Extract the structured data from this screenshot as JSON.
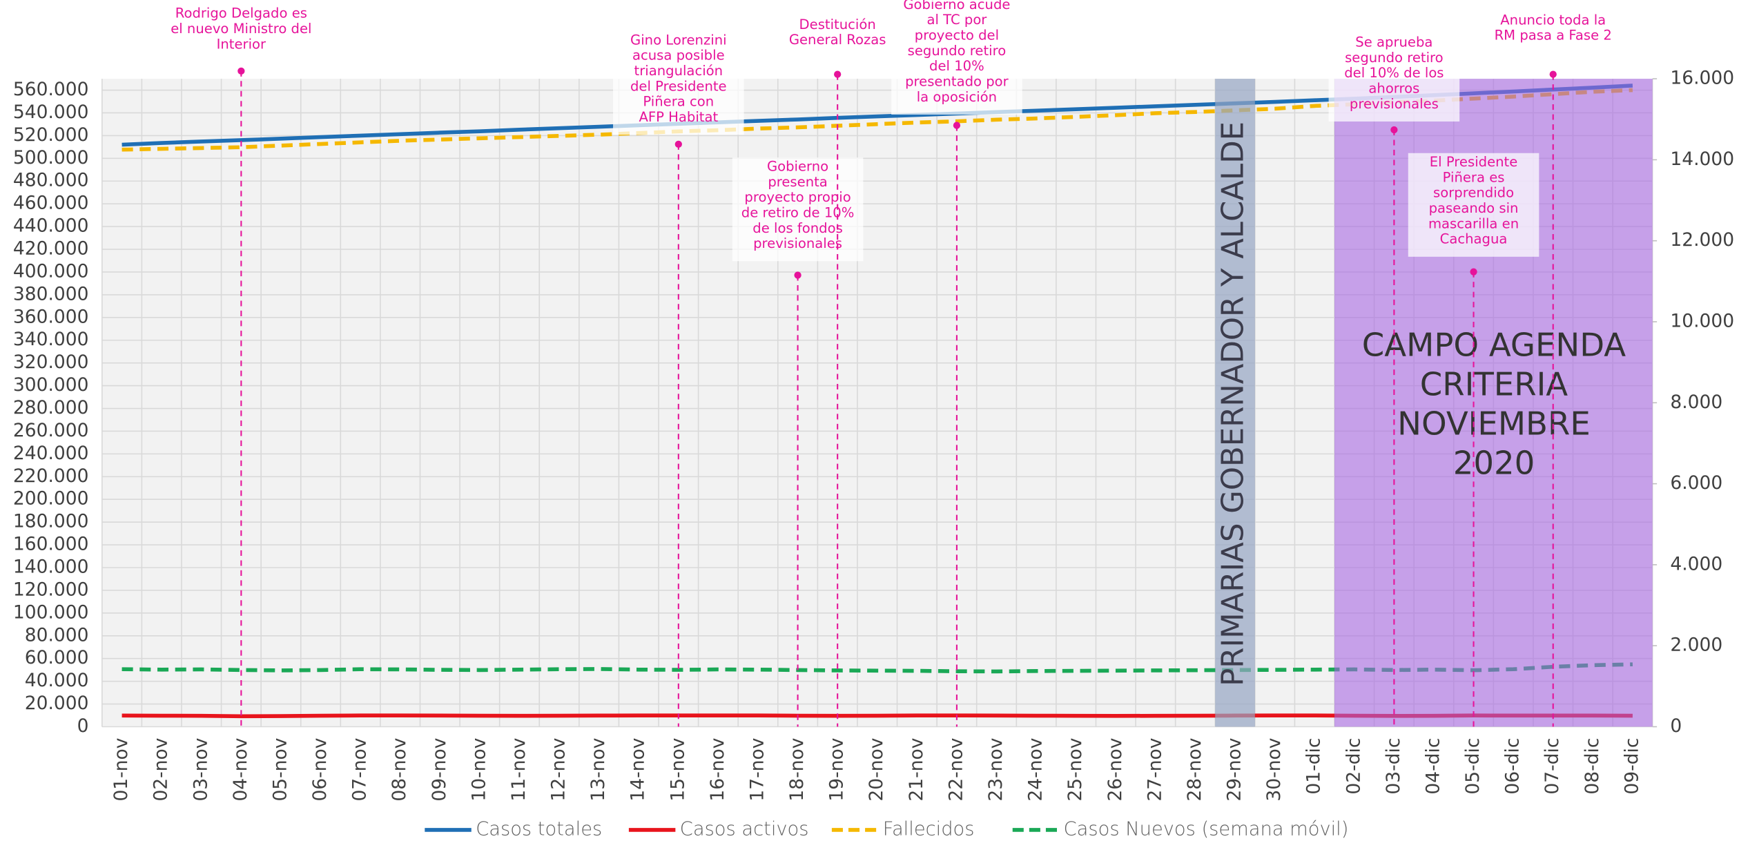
{
  "chart_data": {
    "type": "line",
    "categories": [
      "01-nov",
      "02-nov",
      "03-nov",
      "04-nov",
      "05-nov",
      "06-nov",
      "07-nov",
      "08-nov",
      "09-nov",
      "10-nov",
      "11-nov",
      "12-nov",
      "13-nov",
      "14-nov",
      "15-nov",
      "16-nov",
      "17-nov",
      "18-nov",
      "19-nov",
      "20-nov",
      "21-nov",
      "22-nov",
      "23-nov",
      "24-nov",
      "25-nov",
      "26-nov",
      "27-nov",
      "28-nov",
      "29-nov",
      "30-nov",
      "01-dic",
      "02-dic",
      "03-dic",
      "04-dic",
      "05-dic",
      "06-dic",
      "07-dic",
      "08-dic",
      "09-dic"
    ],
    "series": [
      {
        "name": "Casos totales",
        "color": "#1f6fb5",
        "dashed": false,
        "axis": "y",
        "values": [
          512000,
          513500,
          514800,
          516000,
          517300,
          518700,
          520000,
          521300,
          522600,
          523800,
          525200,
          526500,
          527800,
          529100,
          530400,
          531700,
          533000,
          534200,
          535600,
          536900,
          538100,
          539400,
          540700,
          541900,
          543200,
          544500,
          545800,
          547100,
          548400,
          549700,
          551100,
          552500,
          554000,
          555600,
          557200,
          558800,
          560500,
          562200,
          564000
        ]
      },
      {
        "name": "Casos activos",
        "color": "#e8141c",
        "dashed": false,
        "axis": "y",
        "values": [
          9800,
          9700,
          9600,
          9200,
          9400,
          9700,
          9900,
          9900,
          9800,
          9700,
          9600,
          9700,
          9800,
          9900,
          9900,
          9900,
          9900,
          9700,
          9600,
          9700,
          9900,
          9900,
          9800,
          9700,
          9600,
          9500,
          9600,
          9700,
          9800,
          9900,
          9900,
          9700,
          9500,
          9600,
          9900,
          9800,
          9800,
          9800,
          9700
        ]
      },
      {
        "name": "Fallecidos",
        "color": "#f5b800",
        "dashed": true,
        "axis": "y2",
        "values": [
          14250,
          14270,
          14290,
          14310,
          14350,
          14390,
          14430,
          14470,
          14500,
          14530,
          14560,
          14590,
          14620,
          14660,
          14700,
          14730,
          14770,
          14800,
          14840,
          14880,
          14920,
          14950,
          14990,
          15020,
          15060,
          15100,
          15150,
          15180,
          15220,
          15260,
          15330,
          15370,
          15420,
          15460,
          15510,
          15560,
          15620,
          15680,
          15720
        ]
      },
      {
        "name": "Casos Nuevos (semana móvil)",
        "color": "#1aa856",
        "dashed": true,
        "axis": "y2",
        "values": [
          1420,
          1410,
          1415,
          1400,
          1390,
          1400,
          1420,
          1415,
          1405,
          1400,
          1410,
          1420,
          1425,
          1410,
          1405,
          1415,
          1410,
          1400,
          1390,
          1385,
          1380,
          1370,
          1365,
          1375,
          1380,
          1385,
          1390,
          1395,
          1400,
          1405,
          1410,
          1415,
          1400,
          1410,
          1395,
          1420,
          1480,
          1520,
          1540
        ]
      }
    ],
    "ylim": [
      0,
      570000
    ],
    "yticks": [
      0,
      {
        "value": 20000,
        "label": "20.000"
      },
      {
        "value": 40000,
        "label": "40.000"
      },
      {
        "value": 60000,
        "label": "60.000"
      },
      {
        "value": 80000,
        "label": "80.000"
      },
      {
        "value": 100000,
        "label": "100.000"
      },
      {
        "value": 120000,
        "label": "120.000"
      },
      {
        "value": 140000,
        "label": "140.000"
      },
      {
        "value": 160000,
        "label": "160.000"
      },
      {
        "value": 180000,
        "label": "180.000"
      },
      {
        "value": 200000,
        "label": "200.000"
      },
      {
        "value": 220000,
        "label": "220.000"
      },
      {
        "value": 240000,
        "label": "240.000"
      },
      {
        "value": 260000,
        "label": "260.000"
      },
      {
        "value": 280000,
        "label": "280.000"
      },
      {
        "value": 300000,
        "label": "300.000"
      },
      {
        "value": 320000,
        "label": "320.000"
      },
      {
        "value": 340000,
        "label": "340.000"
      },
      {
        "value": 360000,
        "label": "360.000"
      },
      {
        "value": 380000,
        "label": "380.000"
      },
      {
        "value": 400000,
        "label": "400.000"
      },
      {
        "value": 420000,
        "label": "420.000"
      },
      {
        "value": 440000,
        "label": "440.000"
      },
      {
        "value": 460000,
        "label": "460.000"
      },
      {
        "value": 480000,
        "label": "480.000"
      },
      {
        "value": 500000,
        "label": "500.000"
      },
      {
        "value": 520000,
        "label": "520.000"
      },
      {
        "value": 540000,
        "label": "540.000"
      },
      {
        "value": 560000,
        "label": "560.000"
      }
    ],
    "y2lim": [
      0,
      16000
    ],
    "y2ticks": [
      0,
      {
        "value": 2000,
        "label": "2.000"
      },
      {
        "value": 4000,
        "label": "4.000"
      },
      {
        "value": 6000,
        "label": "6.000"
      },
      {
        "value": 8000,
        "label": "8.000"
      },
      {
        "value": 10000,
        "label": "10.000"
      },
      {
        "value": 12000,
        "label": "12.000"
      },
      {
        "value": 14000,
        "label": "14.000"
      },
      {
        "value": 16000,
        "label": "16.000"
      }
    ],
    "grid": true,
    "legend": "bottom",
    "regions": [
      {
        "label": [
          "PRIMARIAS GOBERNADOR Y ALCALDE"
        ]
      },
      {
        "label": [
          "CAMPO AGENDA",
          "CRITERIA",
          "NOVIEMBRE",
          "2020"
        ]
      }
    ],
    "annotations": [
      {
        "text": [
          "Rodrigo Delgado es",
          "el nuevo Ministro del",
          "Interior"
        ]
      },
      {
        "text": [
          "Gino Lorenzini",
          "acusa posible",
          "triangulación",
          "del Presidente",
          "Piñera con",
          "AFP Habitat"
        ]
      },
      {
        "text": [
          "Gobierno",
          "presenta",
          "proyecto propio",
          "de retiro de 10%",
          "de los fondos",
          "previsionales"
        ]
      },
      {
        "text": [
          "Destitución",
          "General Rozas"
        ]
      },
      {
        "text": [
          "Gobierno acude",
          "al TC por",
          "proyecto del",
          "segundo retiro",
          "del 10%",
          "presentado por",
          "la oposición"
        ]
      },
      {
        "text": [
          "Se aprueba",
          "segundo retiro",
          "del 10% de los",
          "ahorros",
          "previsionales"
        ]
      },
      {
        "text": [
          "El Presidente",
          "Piñera es",
          "sorprendido",
          "paseando sin",
          "mascarilla en",
          "Cachagua"
        ]
      },
      {
        "text": [
          "Anuncio toda la",
          "RM pasa a Fase 2"
        ]
      }
    ]
  }
}
